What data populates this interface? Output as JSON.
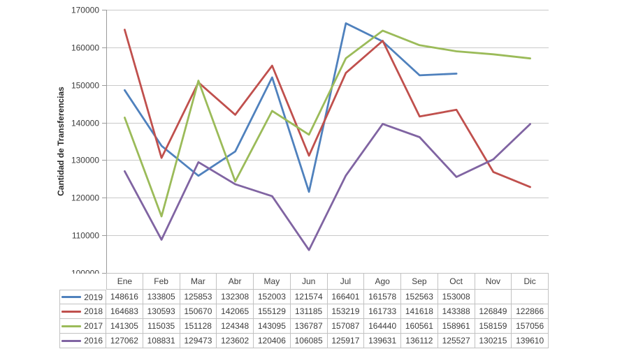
{
  "figure": {
    "background": "#ffffff",
    "text_color": "#3d3d3d",
    "gridline_color": "#c9c9c9",
    "axis_color": "#9a9a9a",
    "table_border_color": "#c2c2c2"
  },
  "chart_data": {
    "type": "line",
    "title": "",
    "xlabel": "",
    "ylabel": "Cantidad de Transferencias",
    "categories": [
      "Ene",
      "Feb",
      "Mar",
      "Abr",
      "May",
      "Jun",
      "Jul",
      "Ago",
      "Sep",
      "Oct",
      "Nov",
      "Dic"
    ],
    "ylim": [
      100000,
      170000
    ],
    "y_ticks": [
      100000,
      110000,
      120000,
      130000,
      140000,
      150000,
      160000,
      170000
    ],
    "grid": true,
    "legend_position": "data-table-left",
    "data_table_shown": true,
    "series": [
      {
        "name": "2019",
        "color": "#4F81BD",
        "values": [
          148616,
          133805,
          125853,
          132308,
          152003,
          121574,
          166401,
          161578,
          152563,
          153008,
          null,
          null
        ]
      },
      {
        "name": "2018",
        "color": "#C0504D",
        "values": [
          164683,
          130593,
          150670,
          142065,
          155129,
          131185,
          153219,
          161733,
          141618,
          143388,
          126849,
          122866
        ]
      },
      {
        "name": "2017",
        "color": "#9BBB59",
        "values": [
          141305,
          115035,
          151128,
          124348,
          143095,
          136787,
          157087,
          164440,
          160561,
          158961,
          158159,
          157056
        ]
      },
      {
        "name": "2016",
        "color": "#8064A2",
        "values": [
          127062,
          108831,
          129473,
          123602,
          120406,
          106085,
          125917,
          139631,
          136112,
          125527,
          130215,
          139610
        ]
      }
    ]
  }
}
